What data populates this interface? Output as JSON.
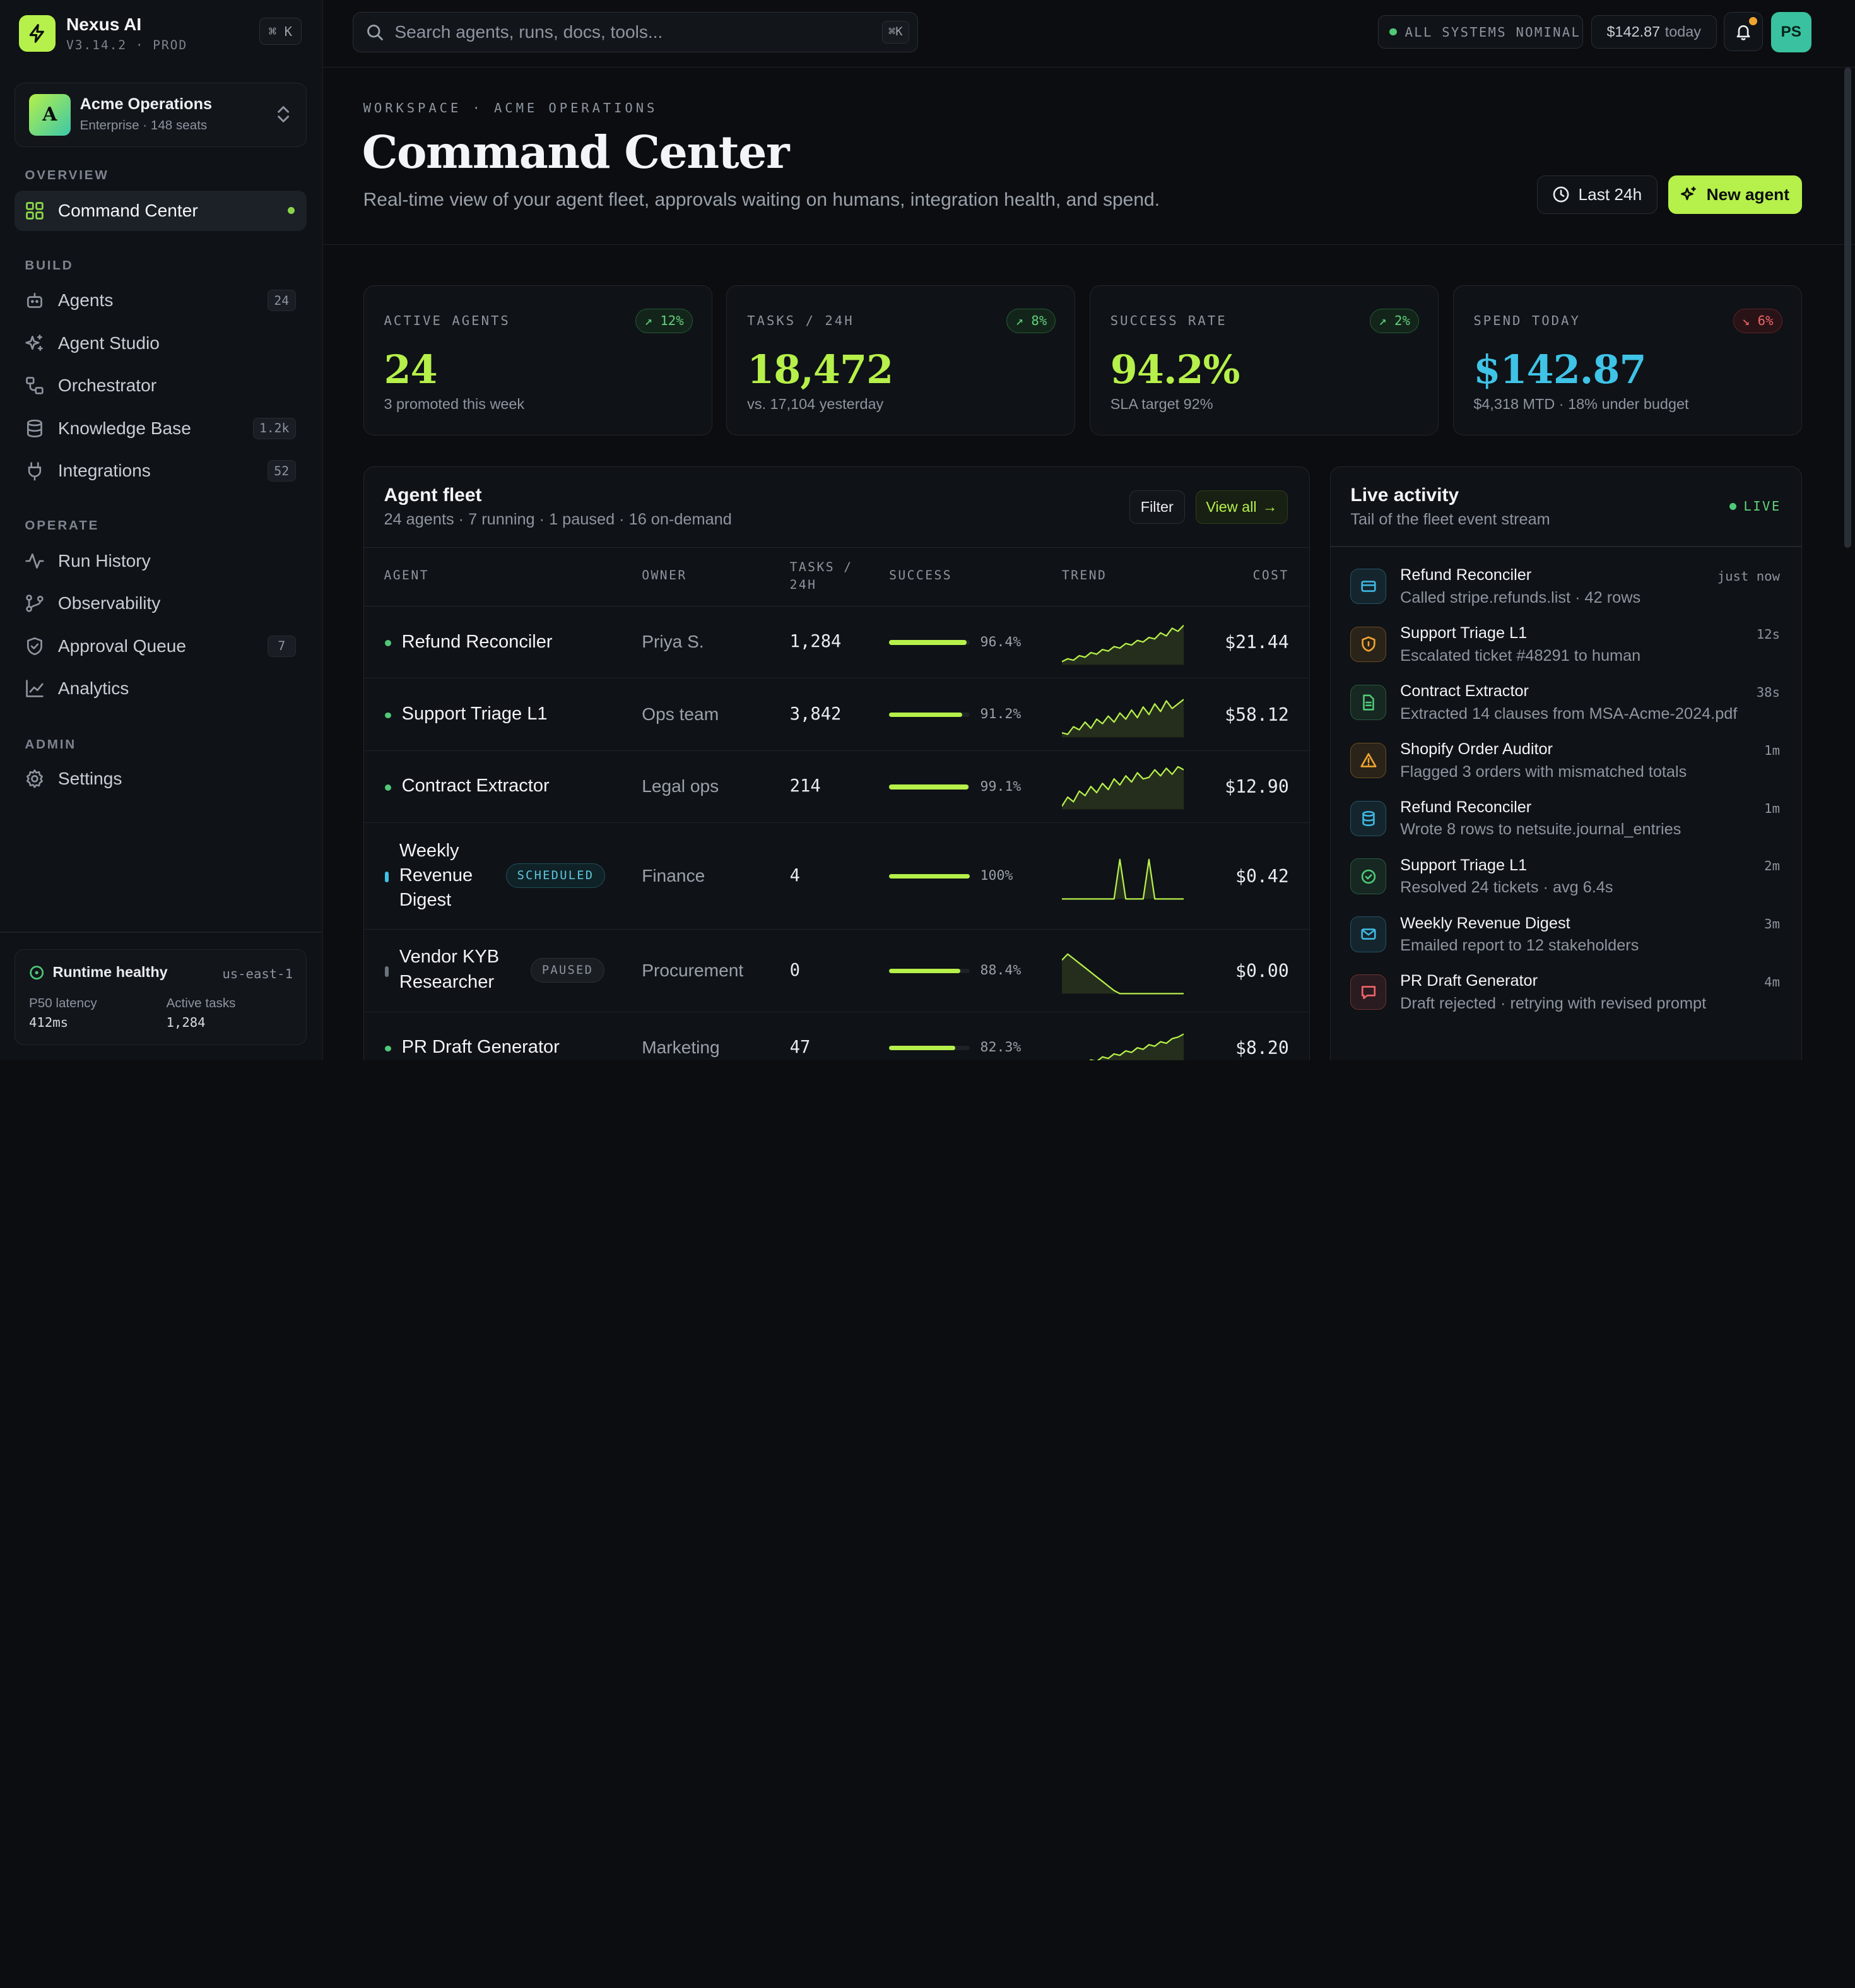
{
  "brand": {
    "name": "Nexus AI",
    "version": "V3.14.2 · PROD",
    "shortcut": "⌘ K"
  },
  "workspace": {
    "initial": "A",
    "name": "Acme Operations",
    "meta": "Enterprise · 148 seats"
  },
  "nav": {
    "sections": {
      "overview": "OVERVIEW",
      "build": "BUILD",
      "operate": "OPERATE",
      "admin": "ADMIN"
    },
    "items": [
      {
        "label": "Command Center",
        "icon": "grid-icon",
        "active": true
      },
      {
        "label": "Agents",
        "icon": "bot-icon",
        "badge": "24"
      },
      {
        "label": "Agent Studio",
        "icon": "sparkles-icon"
      },
      {
        "label": "Orchestrator",
        "icon": "workflow-icon"
      },
      {
        "label": "Knowledge Base",
        "icon": "database-icon",
        "badge": "1.2k"
      },
      {
        "label": "Integrations",
        "icon": "plug-icon",
        "badge": "52"
      },
      {
        "label": "Run History",
        "icon": "activity-icon"
      },
      {
        "label": "Observability",
        "icon": "branch-icon"
      },
      {
        "label": "Approval Queue",
        "icon": "shield-check-icon",
        "badge": "7"
      },
      {
        "label": "Analytics",
        "icon": "line-chart-icon"
      },
      {
        "label": "Settings",
        "icon": "gear-icon"
      }
    ]
  },
  "runtime": {
    "title": "Runtime healthy",
    "region": "us-east-1",
    "latency_label": "P50 latency",
    "latency_value": "412ms",
    "tasks_label": "Active tasks",
    "tasks_value": "1,284"
  },
  "topbar": {
    "search_placeholder": "Search agents, runs, docs, tools...",
    "search_kbd": "⌘K",
    "status": "ALL SYSTEMS NOMINAL",
    "spend": "$142.87",
    "spend_suffix": "today",
    "user_initials": "PS"
  },
  "header": {
    "eyebrow": "WORKSPACE · ACME OPERATIONS",
    "title": "Command Center",
    "subtitle": "Real-time view of your agent fleet, approvals waiting on humans, integration health, and spend.",
    "range_label": "Last 24h",
    "new_agent_label": "New agent"
  },
  "kpis": [
    {
      "label": "ACTIVE AGENTS",
      "delta": "12%",
      "direction": "up",
      "value": "24",
      "sub": "3 promoted this week",
      "color": "#b6f04a"
    },
    {
      "label": "TASKS / 24H",
      "delta": "8%",
      "direction": "up",
      "value": "18,472",
      "sub": "vs. 17,104 yesterday",
      "color": "#b6f04a"
    },
    {
      "label": "SUCCESS RATE",
      "delta": "2%",
      "direction": "up",
      "value": "94.2%",
      "sub": "SLA target 92%",
      "color": "#b6f04a"
    },
    {
      "label": "SPEND TODAY",
      "delta": "6%",
      "direction": "down",
      "value": "$142.87",
      "sub": "$4,318 MTD · 18% under budget",
      "color": "#3fc3e6"
    }
  ],
  "fleet": {
    "title": "Agent fleet",
    "subtitle": "24 agents · 7 running · 1 paused · 16 on-demand",
    "filter_label": "Filter",
    "view_all_label": "View all",
    "columns": {
      "agent": "AGENT",
      "owner": "OWNER",
      "tasks": "TASKS / 24H",
      "success": "SUCCESS",
      "trend": "TREND",
      "cost": "COST"
    },
    "rows": [
      {
        "name": "Refund Reconciler",
        "owner": "Priya S.",
        "tasks": "1,284",
        "success_pct": 96.4,
        "success": "96.4%",
        "cost": "$21.44",
        "status": "running",
        "trend": [
          2,
          4,
          3,
          6,
          5,
          8,
          7,
          10,
          9,
          12,
          11,
          14,
          13,
          16,
          15,
          18,
          17,
          21,
          19,
          24,
          22,
          26
        ]
      },
      {
        "name": "Support Triage L1",
        "owner": "Ops team",
        "tasks": "3,842",
        "success_pct": 91.2,
        "success": "91.2%",
        "cost": "$58.12",
        "status": "running",
        "trend": [
          3,
          2,
          7,
          5,
          10,
          6,
          12,
          9,
          14,
          10,
          16,
          12,
          18,
          13,
          20,
          15,
          22,
          17,
          24,
          19,
          22,
          25
        ]
      },
      {
        "name": "Contract Extractor",
        "owner": "Legal ops",
        "tasks": "214",
        "success_pct": 99.1,
        "success": "99.1%",
        "cost": "$12.90",
        "status": "running",
        "trend": [
          2,
          8,
          5,
          12,
          9,
          15,
          11,
          17,
          13,
          20,
          16,
          22,
          18,
          24,
          20,
          21,
          26,
          22,
          27,
          23,
          28,
          26
        ]
      },
      {
        "name": "Weekly Revenue Digest",
        "owner": "Finance",
        "tasks": "4",
        "success_pct": 100,
        "success": "100%",
        "cost": "$0.42",
        "status": "scheduled",
        "tag": "SCHEDULED",
        "trend": [
          0,
          0,
          0,
          0,
          0,
          0,
          0,
          0,
          0,
          0,
          26,
          0,
          0,
          0,
          0,
          26,
          0,
          0,
          0,
          0,
          0,
          0
        ]
      },
      {
        "name": "Vendor KYB Researcher",
        "owner": "Procurement",
        "tasks": "0",
        "success_pct": 88.4,
        "success": "88.4%",
        "cost": "$0.00",
        "status": "paused",
        "tag": "PAUSED",
        "trend": [
          22,
          26,
          23,
          20,
          17,
          14,
          11,
          8,
          5,
          2,
          0,
          0,
          0,
          0,
          0,
          0,
          0,
          0,
          0,
          0,
          0,
          0
        ]
      },
      {
        "name": "PR Draft Generator",
        "owner": "Marketing",
        "tasks": "47",
        "success_pct": 82.3,
        "success": "82.3%",
        "cost": "$8.20",
        "status": "running",
        "trend": [
          1,
          3,
          2,
          5,
          4,
          7,
          6,
          9,
          8,
          11,
          10,
          13,
          12,
          15,
          14,
          17,
          16,
          19,
          18,
          21,
          22,
          24
        ]
      }
    ]
  },
  "activity": {
    "title": "Live activity",
    "subtitle": "Tail of the fleet event stream",
    "live_label": "LIVE",
    "items": [
      {
        "agent": "Refund Reconciler",
        "desc": "Called stripe.refunds.list · 42 rows",
        "time": "just now",
        "icon": "card-icon",
        "color": "#3fb8e0"
      },
      {
        "agent": "Support Triage L1",
        "desc": "Escalated ticket #48291 to human",
        "time": "12s",
        "icon": "shield-icon",
        "color": "#f0a430"
      },
      {
        "agent": "Contract Extractor",
        "desc": "Extracted 14 clauses from MSA-Acme-2024.pdf",
        "time": "38s",
        "icon": "file-icon",
        "color": "#4fc978"
      },
      {
        "agent": "Shopify Order Auditor",
        "desc": "Flagged 3 orders with mismatched totals",
        "time": "1m",
        "icon": "warning-icon",
        "color": "#f0a430"
      },
      {
        "agent": "Refund Reconciler",
        "desc": "Wrote 8 rows to netsuite.journal_entries",
        "time": "1m",
        "icon": "database-icon",
        "color": "#3fb8e0"
      },
      {
        "agent": "Support Triage L1",
        "desc": "Resolved 24 tickets · avg 6.4s",
        "time": "2m",
        "icon": "check-circle-icon",
        "color": "#4fc978"
      },
      {
        "agent": "Weekly Revenue Digest",
        "desc": "Emailed report to 12 stakeholders",
        "time": "3m",
        "icon": "mail-icon",
        "color": "#3fb8e0"
      },
      {
        "agent": "PR Draft Generator",
        "desc": "Draft rejected · retrying with revised prompt",
        "time": "4m",
        "icon": "message-icon",
        "color": "#f0656c"
      }
    ]
  }
}
